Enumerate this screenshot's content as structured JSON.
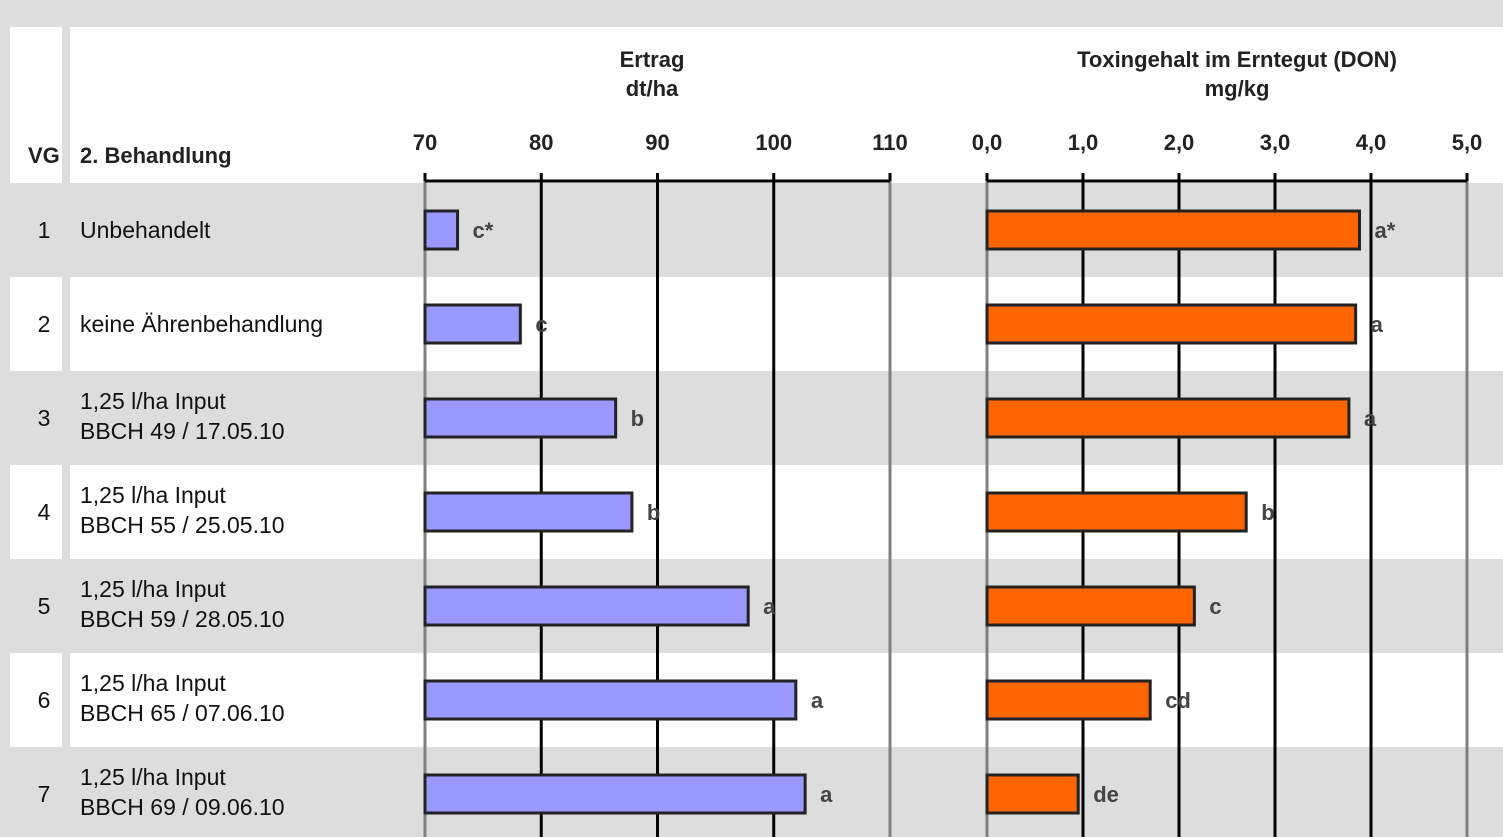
{
  "header": {
    "vg_label": "VG",
    "treatment_label": "2. Behandlung"
  },
  "rows": [
    {
      "vg": "1",
      "lines": [
        "Unbehandelt"
      ]
    },
    {
      "vg": "2",
      "lines": [
        "keine Ährenbehandlung"
      ]
    },
    {
      "vg": "3",
      "lines": [
        "1,25 l/ha Input",
        "BBCH 49 / 17.05.10"
      ]
    },
    {
      "vg": "4",
      "lines": [
        "1,25 l/ha Input",
        "BBCH 55 / 25.05.10"
      ]
    },
    {
      "vg": "5",
      "lines": [
        "1,25 l/ha Input",
        "BBCH 59 / 28.05.10"
      ]
    },
    {
      "vg": "6",
      "lines": [
        "1,25 l/ha Input",
        "BBCH 65 / 07.06.10"
      ]
    },
    {
      "vg": "7",
      "lines": [
        "1,25 l/ha Input",
        "BBCH 69 / 09.06.10"
      ]
    }
  ],
  "colors": {
    "ertrag_bar": "#9999ff",
    "don_bar": "#ff6600",
    "band": "#dddddd",
    "major_grid": "#000000",
    "edge_grid": "#808080"
  },
  "chart_data": [
    {
      "type": "bar",
      "orientation": "horizontal",
      "title": "Ertrag",
      "subtitle": "dt/ha",
      "xlim": [
        70,
        110
      ],
      "ticks": [
        "70",
        "80",
        "90",
        "100",
        "110"
      ],
      "tick_values": [
        70,
        80,
        90,
        100,
        110
      ],
      "categories": [
        "1",
        "2",
        "3",
        "4",
        "5",
        "6",
        "7"
      ],
      "values": [
        72.8,
        78.2,
        86.4,
        87.8,
        97.8,
        101.9,
        102.7
      ],
      "annotations": [
        "c*",
        "c",
        "b",
        "b",
        "a",
        "a",
        "a"
      ]
    },
    {
      "type": "bar",
      "orientation": "horizontal",
      "title": "Toxingehalt im Erntegut (DON)",
      "subtitle": "mg/kg",
      "xlim": [
        0,
        5
      ],
      "ticks": [
        "0,0",
        "1,0",
        "2,0",
        "3,0",
        "4,0",
        "5,0"
      ],
      "tick_values": [
        0,
        1,
        2,
        3,
        4,
        5
      ],
      "categories": [
        "1",
        "2",
        "3",
        "4",
        "5",
        "6",
        "7"
      ],
      "values": [
        3.88,
        3.84,
        3.77,
        2.7,
        2.16,
        1.7,
        0.95
      ],
      "annotations": [
        "a*",
        "a",
        "a",
        "b",
        "c",
        "cd",
        "de"
      ]
    }
  ]
}
